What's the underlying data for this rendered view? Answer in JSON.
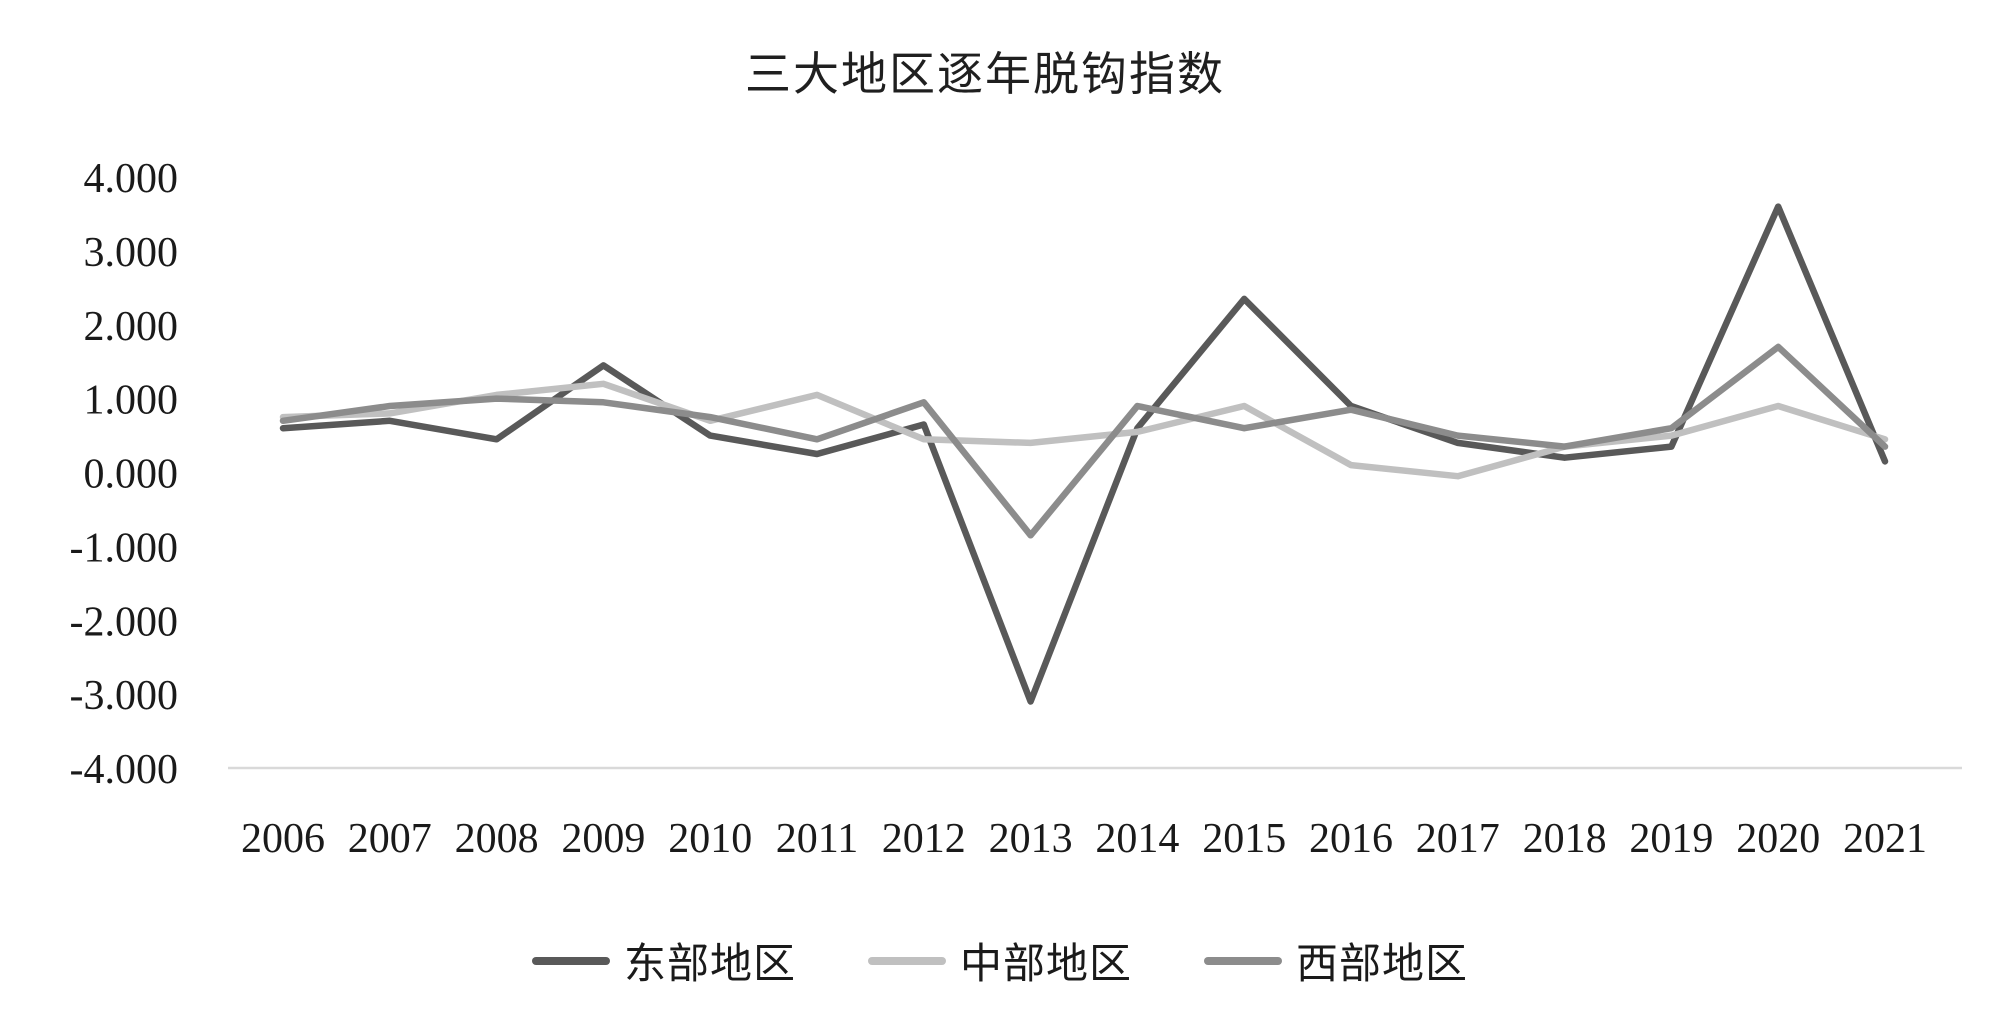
{
  "chart_data": {
    "type": "line",
    "title": "三大地区逐年脱钩指数",
    "x": [
      2006,
      2007,
      2008,
      2009,
      2010,
      2011,
      2012,
      2013,
      2014,
      2015,
      2016,
      2017,
      2018,
      2019,
      2020,
      2021
    ],
    "series": [
      {
        "name": "东部地区",
        "color": "#595959",
        "values": [
          0.6,
          0.7,
          0.45,
          1.45,
          0.5,
          0.25,
          0.65,
          -3.1,
          0.6,
          2.35,
          0.9,
          0.4,
          0.2,
          0.35,
          3.6,
          0.15
        ]
      },
      {
        "name": "中部地区",
        "color": "#c0c0c0",
        "values": [
          0.75,
          0.8,
          1.05,
          1.2,
          0.7,
          1.05,
          0.45,
          0.4,
          0.55,
          0.9,
          0.1,
          -0.05,
          0.35,
          0.5,
          0.9,
          0.45
        ]
      },
      {
        "name": "西部地区",
        "color": "#8c8c8c",
        "values": [
          0.7,
          0.9,
          1.0,
          0.95,
          0.75,
          0.45,
          0.95,
          -0.85,
          0.9,
          0.6,
          0.85,
          0.5,
          0.35,
          0.6,
          1.7,
          0.35
        ]
      }
    ],
    "ylim": [
      -4,
      4
    ],
    "yticks": [
      4,
      3,
      2,
      1,
      0,
      -1,
      -2,
      -3,
      -4
    ],
    "ytick_labels": [
      "4.000",
      "3.000",
      "2.000",
      "1.000",
      "0.000",
      "-1.000",
      "-2.000",
      "-3.000",
      "-4.000"
    ],
    "xtick_labels": [
      "2006",
      "2007",
      "2008",
      "2009",
      "2010",
      "2011",
      "2012",
      "2013",
      "2014",
      "2015",
      "2016",
      "2017",
      "2018",
      "2019",
      "2020",
      "2021"
    ],
    "grid": false,
    "legend_position": "bottom",
    "axis_line_color": "#d9d9d9"
  }
}
